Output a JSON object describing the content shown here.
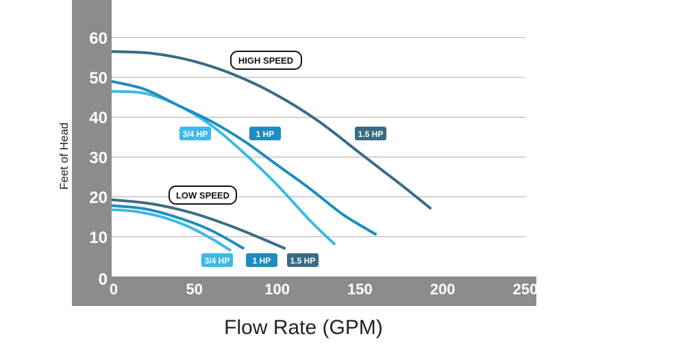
{
  "chart_data": {
    "type": "line",
    "xlabel": "Flow Rate (GPM)",
    "ylabel": "Feet of Head",
    "xlim": [
      0,
      250
    ],
    "ylim": [
      0,
      65
    ],
    "x_ticks": [
      "0",
      "50",
      "100",
      "150",
      "200",
      "250"
    ],
    "y_ticks": [
      "0",
      "10",
      "20",
      "30",
      "40",
      "50",
      "60"
    ],
    "grid": "horizontal",
    "speed_labels": {
      "high": "HIGH SPEED",
      "low": "LOW SPEED"
    },
    "series": [
      {
        "name": "3/4 HP",
        "speed": "high",
        "color": "#3DB8E8",
        "points": [
          [
            0,
            46.5
          ],
          [
            20,
            46
          ],
          [
            40,
            43
          ],
          [
            60,
            38
          ],
          [
            80,
            31
          ],
          [
            100,
            23
          ],
          [
            120,
            14
          ],
          [
            135,
            8
          ]
        ]
      },
      {
        "name": "1 HP",
        "speed": "high",
        "color": "#1E8CC0",
        "points": [
          [
            0,
            49
          ],
          [
            20,
            47
          ],
          [
            40,
            43
          ],
          [
            60,
            39
          ],
          [
            80,
            34
          ],
          [
            100,
            28
          ],
          [
            120,
            22
          ],
          [
            140,
            15.5
          ],
          [
            160,
            10.5
          ]
        ]
      },
      {
        "name": "1.5 HP",
        "speed": "high",
        "color": "#3A6B84",
        "points": [
          [
            0,
            56.5
          ],
          [
            25,
            56
          ],
          [
            50,
            54
          ],
          [
            75,
            50.5
          ],
          [
            100,
            45.5
          ],
          [
            125,
            39
          ],
          [
            150,
            31
          ],
          [
            175,
            23
          ],
          [
            193,
            17
          ]
        ]
      },
      {
        "name": "3/4 HP",
        "speed": "low",
        "color": "#3DB8E8",
        "points": [
          [
            0,
            16.8
          ],
          [
            15,
            16.3
          ],
          [
            30,
            15
          ],
          [
            45,
            12.8
          ],
          [
            60,
            9.6
          ],
          [
            72,
            6.5
          ]
        ]
      },
      {
        "name": "1 HP",
        "speed": "low",
        "color": "#1E8CC0",
        "points": [
          [
            0,
            17.8
          ],
          [
            20,
            17
          ],
          [
            40,
            14.8
          ],
          [
            60,
            11.6
          ],
          [
            80,
            7
          ]
        ]
      },
      {
        "name": "1.5 HP",
        "speed": "low",
        "color": "#3A6B84",
        "points": [
          [
            0,
            19.3
          ],
          [
            25,
            18.2
          ],
          [
            50,
            15.8
          ],
          [
            75,
            12.2
          ],
          [
            105,
            7
          ]
        ]
      }
    ],
    "tags": [
      {
        "text": "3/4 HP",
        "color": "#3DB8E8"
      },
      {
        "text": "1 HP",
        "color": "#1E8CC0"
      },
      {
        "text": "1.5 HP",
        "color": "#3A6B84"
      },
      {
        "text": "3/4 HP",
        "color": "#3DB8E8"
      },
      {
        "text": "1 HP",
        "color": "#1E8CC0"
      },
      {
        "text": "1.5 HP",
        "color": "#3A6B84"
      }
    ]
  },
  "colors": {
    "frame": "#8C8C8C",
    "plot_background": "#ffffff",
    "grid": "#a9a9a9"
  }
}
